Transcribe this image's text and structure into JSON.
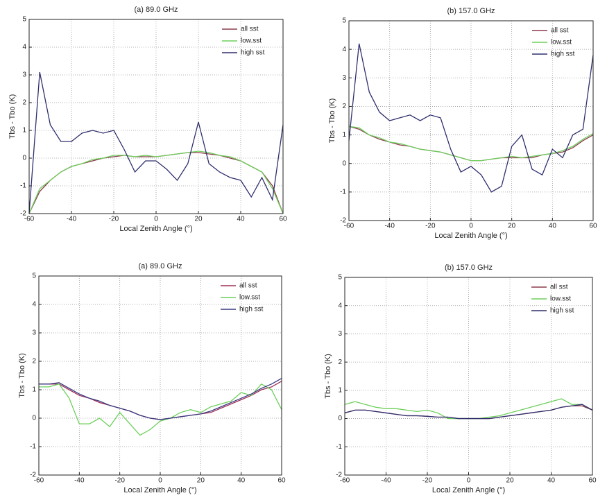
{
  "chart_data": [
    {
      "type": "line",
      "title": "(a) 89.0 GHz",
      "xlabel": "Local Zenith Angle (°)",
      "ylabel": "Tbs - Tbo (K)",
      "grid": true,
      "legend": "upper right",
      "x": [
        -60,
        -55,
        -50,
        -45,
        -40,
        -35,
        -30,
        -25,
        -20,
        -15,
        -10,
        -5,
        0,
        5,
        10,
        15,
        20,
        25,
        30,
        35,
        40,
        45,
        50,
        55,
        60
      ],
      "xlim": [
        -60,
        60
      ],
      "xticks": [
        -60,
        -40,
        -20,
        0,
        20,
        40,
        60
      ],
      "ylim": [
        -2,
        5
      ],
      "yticks": [
        -2,
        -1,
        0,
        1,
        2,
        3,
        4,
        5
      ],
      "series": [
        {
          "name": "all sst",
          "color": "#8b3a4a",
          "values": [
            -2,
            -1.2,
            -0.8,
            -0.5,
            -0.3,
            -0.2,
            -0.1,
            0,
            0.05,
            0.1,
            0.05,
            0.05,
            0.05,
            0.1,
            0.15,
            0.2,
            0.2,
            0.15,
            0.1,
            0,
            -0.1,
            -0.3,
            -0.5,
            -1,
            -2
          ]
        },
        {
          "name": "low.sst",
          "color": "#6ccf5a",
          "values": [
            -2,
            -1.1,
            -0.8,
            -0.5,
            -0.3,
            -0.2,
            -0.05,
            0,
            0.1,
            0.1,
            0.05,
            0.1,
            0.05,
            0.1,
            0.15,
            0.2,
            0.25,
            0.2,
            0.1,
            0.05,
            -0.1,
            -0.3,
            -0.5,
            -1.1,
            -2
          ]
        },
        {
          "name": "high sst",
          "color": "#2e2e6e",
          "values": [
            -2,
            3.1,
            1.2,
            0.6,
            0.6,
            0.9,
            1,
            0.9,
            1,
            0.3,
            -0.5,
            -0.1,
            -0.1,
            -0.4,
            -0.8,
            -0.2,
            1.3,
            -0.2,
            -0.5,
            -0.7,
            -0.8,
            -1.4,
            -0.7,
            -1.5,
            1.2
          ]
        }
      ]
    },
    {
      "type": "line",
      "title": "(b) 157.0 GHz",
      "xlabel": "Local Zenith Angle (°)",
      "ylabel": "Tbs - Tbo (K)",
      "grid": true,
      "legend": "upper right",
      "x": [
        -60,
        -55,
        -50,
        -45,
        -40,
        -35,
        -30,
        -25,
        -20,
        -15,
        -10,
        -5,
        0,
        5,
        10,
        15,
        20,
        25,
        30,
        35,
        40,
        45,
        50,
        55,
        60
      ],
      "xlim": [
        -60,
        60
      ],
      "xticks": [
        -60,
        -40,
        -20,
        0,
        20,
        40,
        60
      ],
      "ylim": [
        -2,
        5
      ],
      "yticks": [
        -2,
        -1,
        0,
        1,
        2,
        3,
        4,
        5
      ],
      "series": [
        {
          "name": "all sst",
          "color": "#8b3a4a",
          "values": [
            1.3,
            1.2,
            1,
            0.85,
            0.75,
            0.65,
            0.6,
            0.5,
            0.45,
            0.4,
            0.3,
            0.2,
            0.1,
            0.1,
            0.15,
            0.2,
            0.2,
            0.2,
            0.2,
            0.3,
            0.35,
            0.4,
            0.55,
            0.8,
            1
          ]
        },
        {
          "name": "low.sst",
          "color": "#6ccf5a",
          "values": [
            1.3,
            1.25,
            1,
            0.9,
            0.75,
            0.7,
            0.6,
            0.5,
            0.45,
            0.4,
            0.3,
            0.2,
            0.1,
            0.1,
            0.15,
            0.2,
            0.25,
            0.2,
            0.25,
            0.3,
            0.35,
            0.45,
            0.6,
            0.85,
            1.05
          ]
        },
        {
          "name": "high sst",
          "color": "#2e2e6e",
          "values": [
            0.8,
            4.2,
            2.5,
            1.8,
            1.5,
            1.6,
            1.7,
            1.5,
            1.7,
            1.6,
            0.5,
            -0.3,
            -0.1,
            -0.4,
            -1,
            -0.8,
            0.6,
            1,
            -0.2,
            -0.4,
            0.5,
            0.2,
            1,
            1.2,
            3.8
          ]
        }
      ]
    },
    {
      "type": "line",
      "title": "(a) 89.0 GHz",
      "xlabel": "Local Zenith Angle (°)",
      "ylabel": "Tbs - Tbo (K)",
      "grid": true,
      "legend": "upper right",
      "x": [
        -60,
        -55,
        -50,
        -45,
        -40,
        -35,
        -30,
        -25,
        -20,
        -15,
        -10,
        -5,
        0,
        5,
        10,
        15,
        20,
        25,
        30,
        35,
        40,
        45,
        50,
        55,
        60
      ],
      "xlim": [
        -60,
        60
      ],
      "xticks": [
        -60,
        -40,
        -20,
        0,
        20,
        40,
        60
      ],
      "ylim": [
        -2,
        5
      ],
      "yticks": [
        -2,
        -1,
        0,
        1,
        2,
        3,
        4,
        5
      ],
      "series": [
        {
          "name": "all sst",
          "color": "#a0305a",
          "values": [
            1.2,
            1.2,
            1.2,
            1,
            0.8,
            0.7,
            0.55,
            0.45,
            0.35,
            0.25,
            0.1,
            0,
            -0.05,
            0,
            0.05,
            0.1,
            0.15,
            0.2,
            0.35,
            0.5,
            0.65,
            0.8,
            1,
            1.1,
            1.3
          ]
        },
        {
          "name": "low.sst",
          "color": "#6ccf5a",
          "values": [
            1.1,
            1.1,
            1.2,
            0.7,
            -0.2,
            -0.2,
            0,
            -0.3,
            0.2,
            -0.2,
            -0.6,
            -0.4,
            -0.1,
            0,
            0.2,
            0.3,
            0.2,
            0.4,
            0.5,
            0.6,
            0.9,
            0.8,
            1.2,
            1,
            0.3
          ]
        },
        {
          "name": "high sst",
          "color": "#3a3a80",
          "values": [
            1.2,
            1.2,
            1.25,
            1.05,
            0.85,
            0.7,
            0.6,
            0.45,
            0.35,
            0.25,
            0.1,
            0,
            -0.05,
            0,
            0.05,
            0.1,
            0.15,
            0.25,
            0.4,
            0.55,
            0.7,
            0.85,
            1.05,
            1.2,
            1.4
          ]
        }
      ]
    },
    {
      "type": "line",
      "title": "(b) 157.0 GHz",
      "xlabel": "Local Zenith Angle (°)",
      "ylabel": "Tbs - Tbo (K)",
      "grid": true,
      "legend": "upper right",
      "x": [
        -60,
        -55,
        -50,
        -45,
        -40,
        -35,
        -30,
        -25,
        -20,
        -15,
        -10,
        -5,
        0,
        5,
        10,
        15,
        20,
        25,
        30,
        35,
        40,
        45,
        50,
        55,
        60
      ],
      "xlim": [
        -60,
        60
      ],
      "xticks": [
        -60,
        -40,
        -20,
        0,
        20,
        40,
        60
      ],
      "ylim": [
        -2,
        5
      ],
      "yticks": [
        -2,
        -1,
        0,
        1,
        2,
        3,
        4,
        5
      ],
      "series": [
        {
          "name": "all sst",
          "color": "#8b3a4a",
          "values": [
            0.2,
            0.3,
            0.3,
            0.25,
            0.2,
            0.15,
            0.1,
            0.1,
            0.08,
            0.05,
            0.05,
            0,
            0,
            0,
            0,
            0.05,
            0.1,
            0.15,
            0.2,
            0.25,
            0.3,
            0.4,
            0.45,
            0.45,
            0.3
          ]
        },
        {
          "name": "low.sst",
          "color": "#6ccf5a",
          "values": [
            0.5,
            0.6,
            0.5,
            0.4,
            0.35,
            0.35,
            0.3,
            0.25,
            0.3,
            0.2,
            0,
            0,
            0,
            0,
            0.05,
            0.1,
            0.2,
            0.3,
            0.4,
            0.5,
            0.6,
            0.7,
            0.5,
            0.5,
            0.3
          ]
        },
        {
          "name": "high sst",
          "color": "#2e2e6e",
          "values": [
            0.2,
            0.3,
            0.3,
            0.25,
            0.2,
            0.15,
            0.1,
            0.1,
            0.08,
            0.05,
            0.05,
            0,
            0,
            0,
            0,
            0.05,
            0.1,
            0.15,
            0.2,
            0.25,
            0.3,
            0.4,
            0.45,
            0.5,
            0.3
          ]
        }
      ]
    }
  ]
}
